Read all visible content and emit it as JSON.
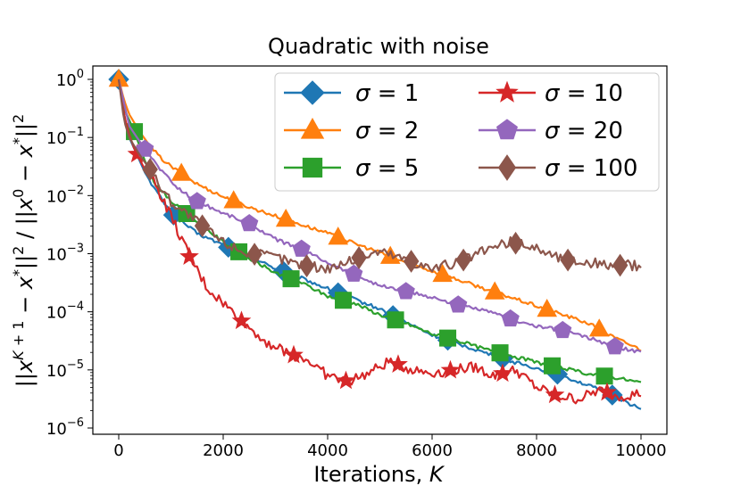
{
  "chart_data": {
    "type": "line",
    "title": "Quadratic with noise",
    "xlabel": "Iterations, K",
    "ylabel": "||x^(K+1) − x*||² / ||x⁰ − x*||²",
    "xlim": [
      0,
      10000
    ],
    "ylim_log10": [
      -6,
      0
    ],
    "yscale": "log",
    "x_ticks": [
      0,
      2000,
      4000,
      6000,
      8000,
      10000
    ],
    "x_tick_labels": [
      "0",
      "2000",
      "4000",
      "6000",
      "8000",
      "10000"
    ],
    "y_ticks_log10": [
      0,
      -1,
      -2,
      -3,
      -4,
      -5,
      -6
    ],
    "y_tick_base": "10",
    "y_tick_exps": [
      "0",
      "−1",
      "−2",
      "−3",
      "−4",
      "−5",
      "−6"
    ],
    "legend_position": "upper-right",
    "series": [
      {
        "name": "σ = 1",
        "label_symbol": "σ",
        "label_value": "1",
        "color": "#1f77b4",
        "marker": "diamond",
        "x": [
          0,
          100,
          200,
          300,
          500,
          700,
          1000,
          1500,
          2000,
          2500,
          3000,
          3500,
          4000,
          4500,
          5000,
          5500,
          6000,
          6500,
          7000,
          7500,
          8000,
          8500,
          9000,
          9500,
          10000
        ],
        "log10y": [
          0,
          -0.6,
          -1.0,
          -1.2,
          -1.6,
          -1.9,
          -2.3,
          -2.65,
          -2.85,
          -3.05,
          -3.25,
          -3.42,
          -3.6,
          -3.78,
          -3.95,
          -4.18,
          -4.4,
          -4.55,
          -4.7,
          -4.85,
          -4.97,
          -5.1,
          -5.27,
          -5.45,
          -5.68
        ],
        "marker_x": [
          0,
          1050,
          2100,
          3150,
          4200,
          5250,
          6300,
          7350,
          8400,
          9450
        ]
      },
      {
        "name": "σ = 2",
        "label_symbol": "σ",
        "label_value": "2",
        "color": "#ff7f0e",
        "marker": "triangle",
        "x": [
          0,
          100,
          200,
          400,
          600,
          800,
          1000,
          1500,
          2000,
          2500,
          3000,
          3500,
          4000,
          4500,
          5000,
          5500,
          6000,
          6500,
          7000,
          7500,
          8000,
          8500,
          9000,
          9500,
          10000
        ],
        "log10y": [
          0,
          -0.35,
          -0.6,
          -0.9,
          -1.15,
          -1.35,
          -1.5,
          -1.8,
          -2.02,
          -2.2,
          -2.35,
          -2.5,
          -2.65,
          -2.82,
          -2.98,
          -3.15,
          -3.3,
          -3.45,
          -3.6,
          -3.75,
          -3.9,
          -4.05,
          -4.2,
          -4.45,
          -4.65
        ],
        "marker_x": [
          0,
          1200,
          2200,
          3200,
          4200,
          5200,
          6200,
          7200,
          8200,
          9200
        ]
      },
      {
        "name": "σ = 5",
        "label_symbol": "σ",
        "label_value": "5",
        "color": "#2ca02c",
        "marker": "square",
        "x": [
          0,
          100,
          200,
          300,
          500,
          700,
          1000,
          1500,
          2000,
          2500,
          3000,
          3500,
          4000,
          4500,
          5000,
          5500,
          6000,
          6500,
          7000,
          7500,
          8000,
          8500,
          9000,
          9500,
          10000
        ],
        "log10y": [
          0,
          -0.5,
          -0.7,
          -0.9,
          -1.4,
          -1.8,
          -2.1,
          -2.45,
          -2.8,
          -3.08,
          -3.33,
          -3.5,
          -3.73,
          -3.85,
          -4.05,
          -4.2,
          -4.38,
          -4.5,
          -4.64,
          -4.75,
          -4.87,
          -4.97,
          -5.07,
          -5.13,
          -5.22
        ],
        "marker_x": [
          300,
          1300,
          2300,
          3300,
          4300,
          5300,
          6300,
          7300,
          8300,
          9300
        ]
      },
      {
        "name": "σ = 10",
        "label_symbol": "σ",
        "label_value": "10",
        "color": "#d62728",
        "marker": "star",
        "x": [
          0,
          100,
          200,
          300,
          500,
          700,
          1000,
          1350,
          1700,
          2000,
          2400,
          2800,
          3200,
          3600,
          4000,
          4400,
          4800,
          5200,
          5600,
          6000,
          6400,
          6800,
          7200,
          7600,
          8000,
          8400,
          8800,
          9200,
          9600,
          10000
        ],
        "log10y": [
          0,
          -0.6,
          -0.95,
          -1.2,
          -1.55,
          -1.8,
          -2.35,
          -3.05,
          -3.6,
          -3.85,
          -4.2,
          -4.5,
          -4.7,
          -4.82,
          -5.1,
          -5.2,
          -5.05,
          -4.85,
          -5.0,
          -5.05,
          -5.0,
          -4.95,
          -5.1,
          -5.0,
          -5.3,
          -5.45,
          -5.5,
          -5.35,
          -5.45,
          -5.4
        ],
        "marker_x": [
          350,
          1350,
          2350,
          3350,
          4350,
          5350,
          6350,
          7350,
          8350,
          9350
        ]
      },
      {
        "name": "σ = 20",
        "label_symbol": "σ",
        "label_value": "20",
        "color": "#9467bd",
        "marker": "pentagon",
        "x": [
          0,
          200,
          500,
          800,
          1100,
          1500,
          2000,
          2500,
          3000,
          3500,
          4000,
          4500,
          5000,
          5500,
          6000,
          6500,
          7000,
          7500,
          8000,
          8500,
          9000,
          9500,
          10000
        ],
        "log10y": [
          0,
          -0.8,
          -1.2,
          -1.55,
          -1.85,
          -2.1,
          -2.3,
          -2.48,
          -2.75,
          -2.92,
          -3.15,
          -3.35,
          -3.55,
          -3.65,
          -3.75,
          -3.88,
          -3.98,
          -4.12,
          -4.25,
          -4.32,
          -4.45,
          -4.6,
          -4.7
        ],
        "marker_x": [
          500,
          1500,
          2500,
          3500,
          4500,
          5500,
          6500,
          7500,
          8500,
          9500
        ]
      },
      {
        "name": "σ = 100",
        "label_symbol": "σ",
        "label_value": "100",
        "color": "#8c564b",
        "marker": "diamond-thin",
        "x": [
          0,
          100,
          200,
          400,
          600,
          800,
          1000,
          1500,
          2000,
          2500,
          3000,
          3500,
          4000,
          4500,
          5000,
          5500,
          6000,
          6500,
          7000,
          7500,
          8000,
          8500,
          9000,
          9500,
          10000
        ],
        "log10y": [
          0,
          -0.7,
          -1.0,
          -1.3,
          -1.55,
          -1.85,
          -2.1,
          -2.45,
          -2.8,
          -3.0,
          -3.05,
          -3.2,
          -3.25,
          -3.1,
          -2.95,
          -3.1,
          -3.25,
          -3.15,
          -2.95,
          -2.8,
          -2.9,
          -3.1,
          -3.15,
          -3.2,
          -3.2
        ],
        "marker_x": [
          600,
          1600,
          2600,
          3600,
          4600,
          5600,
          6600,
          7600,
          8600,
          9600
        ]
      }
    ]
  }
}
